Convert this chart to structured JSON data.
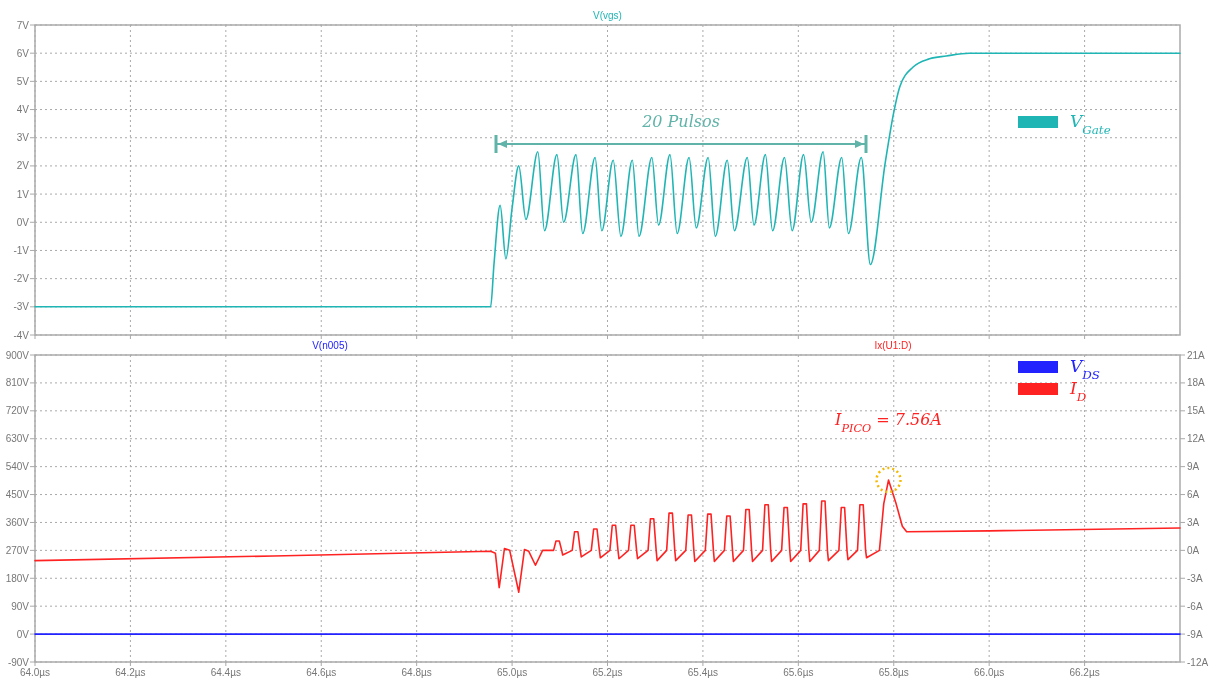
{
  "chart_data": [
    {
      "type": "line",
      "title": "V(vgs)",
      "xlim": [
        64.0,
        66.4
      ],
      "xticks": [
        {
          "value": 64.0,
          "label": null
        },
        {
          "value": 64.2,
          "label": null
        },
        {
          "value": 64.4,
          "label": null
        },
        {
          "value": 64.6,
          "label": null
        },
        {
          "value": 64.8,
          "label": null
        },
        {
          "value": 65.0,
          "label": null
        },
        {
          "value": 65.2,
          "label": null
        },
        {
          "value": 65.4,
          "label": null
        },
        {
          "value": 65.6,
          "label": null
        },
        {
          "value": 65.8,
          "label": null
        },
        {
          "value": 66.0,
          "label": null
        },
        {
          "value": 66.2,
          "label": null
        }
      ],
      "ylim": [
        -4,
        7
      ],
      "yticks": [
        {
          "value": -4,
          "label": "-4V"
        },
        {
          "value": -3,
          "label": "-3V"
        },
        {
          "value": -2,
          "label": "-2V"
        },
        {
          "value": -1,
          "label": "-1V"
        },
        {
          "value": 0,
          "label": "0V"
        },
        {
          "value": 1,
          "label": "1V"
        },
        {
          "value": 2,
          "label": "2V"
        },
        {
          "value": 3,
          "label": "3V"
        },
        {
          "value": 4,
          "label": "4V"
        },
        {
          "value": 5,
          "label": "5V"
        },
        {
          "value": 6,
          "label": "6V"
        },
        {
          "value": 7,
          "label": "7V"
        }
      ],
      "tick_labels": "y",
      "grid": true,
      "legend": "top right",
      "line_style": "solid",
      "annotations": [
        "20 Pulsos"
      ],
      "series": [
        {
          "name": "V$_{Gate}$",
          "color": "#20b5b5",
          "x": [
            64.0,
            64.955,
            64.962,
            64.975,
            64.987,
            65.0,
            65.014,
            65.029,
            65.054,
            65.068,
            65.094,
            65.108,
            65.134,
            65.148,
            65.174,
            65.188,
            65.212,
            65.228,
            65.252,
            65.266,
            65.293,
            65.307,
            65.331,
            65.346,
            65.371,
            65.386,
            65.411,
            65.426,
            65.451,
            65.466,
            65.493,
            65.507,
            65.531,
            65.546,
            65.571,
            65.587,
            65.611,
            65.627,
            65.652,
            65.665,
            65.691,
            65.705,
            65.732,
            65.751,
            65.782,
            65.8,
            65.8125,
            65.84,
            65.875,
            65.91,
            65.958,
            66.035,
            66.4
          ],
          "values": [
            -3,
            -3,
            -1.5,
            0.6,
            -1.3,
            0.5,
            2.0,
            0.1,
            2.5,
            -0.3,
            2.4,
            0,
            2.4,
            -0.4,
            2.3,
            -0.3,
            2.2,
            -0.5,
            2.2,
            -0.5,
            2.3,
            -0.1,
            2.4,
            -0.4,
            2.3,
            -0.2,
            2.3,
            -0.5,
            2.2,
            -0.3,
            2.3,
            -0.1,
            2.4,
            -0.3,
            2.3,
            -0.3,
            2.4,
            0,
            2.5,
            -0.2,
            2.3,
            -0.4,
            2.3,
            -1.5,
            2.1,
            3.9,
            4.8,
            5.5,
            5.8,
            5.9,
            6.0,
            6.0,
            6.0
          ]
        }
      ]
    },
    {
      "type": "line",
      "ylabel": "V(n005)",
      "y2label": "Ix(U1:D)",
      "xlim": [
        64.0,
        66.4
      ],
      "xticks": [
        {
          "value": 64.0,
          "label": "64.0µs"
        },
        {
          "value": 64.2,
          "label": "64.2µs"
        },
        {
          "value": 64.4,
          "label": "64.4µs"
        },
        {
          "value": 64.6,
          "label": "64.6µs"
        },
        {
          "value": 64.8,
          "label": "64.8µs"
        },
        {
          "value": 65.0,
          "label": "65.0µs"
        },
        {
          "value": 65.2,
          "label": "65.2µs"
        },
        {
          "value": 65.4,
          "label": "65.4µs"
        },
        {
          "value": 65.6,
          "label": "65.6µs"
        },
        {
          "value": 65.8,
          "label": "65.8µs"
        },
        {
          "value": 66.0,
          "label": "66.0µs"
        },
        {
          "value": 66.2,
          "label": "66.2µs"
        }
      ],
      "ylim": [
        -90,
        900
      ],
      "yticks": [
        {
          "value": -90,
          "label": "-90V"
        },
        {
          "value": 0,
          "label": "0V"
        },
        {
          "value": 90,
          "label": "90V"
        },
        {
          "value": 180,
          "label": "180V"
        },
        {
          "value": 270,
          "label": "270V"
        },
        {
          "value": 360,
          "label": "360V"
        },
        {
          "value": 450,
          "label": "450V"
        },
        {
          "value": 540,
          "label": "540V"
        },
        {
          "value": 630,
          "label": "630V"
        },
        {
          "value": 720,
          "label": "720V"
        },
        {
          "value": 810,
          "label": "810V"
        },
        {
          "value": 900,
          "label": "900V"
        }
      ],
      "y2lim": [
        -12,
        21
      ],
      "y2ticks": [
        {
          "value": -12,
          "label": "-12A"
        },
        {
          "value": -9,
          "label": "-9A"
        },
        {
          "value": -6,
          "label": "-6A"
        },
        {
          "value": -3,
          "label": "-3A"
        },
        {
          "value": 0,
          "label": "0A"
        },
        {
          "value": 3,
          "label": "3A"
        },
        {
          "value": 6,
          "label": "6A"
        },
        {
          "value": 9,
          "label": "9A"
        },
        {
          "value": 12,
          "label": "12A"
        },
        {
          "value": 15,
          "label": "15A"
        },
        {
          "value": 18,
          "label": "18A"
        },
        {
          "value": 21,
          "label": "21A"
        }
      ],
      "grid": true,
      "legend": "top right",
      "line_style": "solid",
      "annotations": [
        {
          "text": "I$_{PICO}$ = 7.56A",
          "x": 65.789,
          "y": 497
        }
      ],
      "series": [
        {
          "name": "V$_{DS}$",
          "color": "#2222ff",
          "x": [
            64.0,
            65.75,
            65.8,
            66.4
          ],
          "values": [
            0,
            0,
            0,
            0
          ]
        },
        {
          "name": "I$_{D}$",
          "color": "#ff2222",
          "axis": "y2",
          "x": [
            64.0,
            64.5,
            64.955,
            64.965,
            64.973,
            64.984,
            64.995,
            65.014,
            65.026,
            65.035,
            65.049,
            65.064,
            65.087,
            65.092,
            65.099,
            65.104,
            65.106,
            65.126,
            65.131,
            65.138,
            65.143,
            65.145,
            65.166,
            65.171,
            65.178,
            65.183,
            65.185,
            65.205,
            65.21,
            65.217,
            65.222,
            65.224,
            65.244,
            65.249,
            65.256,
            65.261,
            65.263,
            65.285,
            65.29,
            65.297,
            65.302,
            65.304,
            65.324,
            65.329,
            65.336,
            65.341,
            65.343,
            65.364,
            65.369,
            65.376,
            65.381,
            65.383,
            65.405,
            65.41,
            65.417,
            65.422,
            65.424,
            65.445,
            65.45,
            65.457,
            65.462,
            65.464,
            65.485,
            65.49,
            65.497,
            65.502,
            65.504,
            65.525,
            65.53,
            65.537,
            65.542,
            65.544,
            65.565,
            65.57,
            65.577,
            65.582,
            65.584,
            65.605,
            65.61,
            65.617,
            65.622,
            65.624,
            65.644,
            65.649,
            65.656,
            65.661,
            65.663,
            65.685,
            65.69,
            65.697,
            65.702,
            65.704,
            65.724,
            65.729,
            65.736,
            65.741,
            65.743,
            65.77,
            65.779,
            65.789,
            65.805,
            65.818,
            65.827,
            66.0,
            66.4
          ],
          "values": [
            -1.1,
            -0.6,
            -0.1,
            -0.3,
            -4.0,
            0.2,
            0,
            -4.5,
            0.1,
            -0.1,
            -1.6,
            0,
            0,
            1.0,
            1.0,
            0,
            -0.5,
            0,
            2.0,
            2.0,
            0,
            -0.7,
            0,
            2.3,
            2.3,
            0,
            -0.8,
            0,
            2.7,
            2.7,
            0,
            -0.9,
            0,
            2.7,
            2.7,
            0,
            -0.9,
            0,
            3.4,
            3.4,
            0,
            -1.1,
            0,
            4.0,
            4.0,
            0,
            -1.1,
            0,
            3.8,
            3.8,
            0,
            -1.2,
            0,
            3.9,
            3.9,
            0,
            -1.2,
            0,
            3.7,
            3.7,
            0,
            -1.2,
            0,
            4.4,
            4.4,
            0,
            -1.2,
            0,
            4.9,
            4.9,
            0,
            -1.2,
            0,
            4.6,
            4.6,
            0,
            -1.2,
            0,
            5.0,
            5.0,
            0,
            -1.2,
            0,
            5.3,
            5.3,
            0,
            -1.1,
            0,
            4.6,
            4.6,
            0,
            -1.0,
            0,
            4.9,
            4.9,
            0,
            -0.8,
            0,
            5,
            7.56,
            5,
            2.6,
            2.0,
            2.1,
            2.4
          ]
        }
      ]
    }
  ]
}
